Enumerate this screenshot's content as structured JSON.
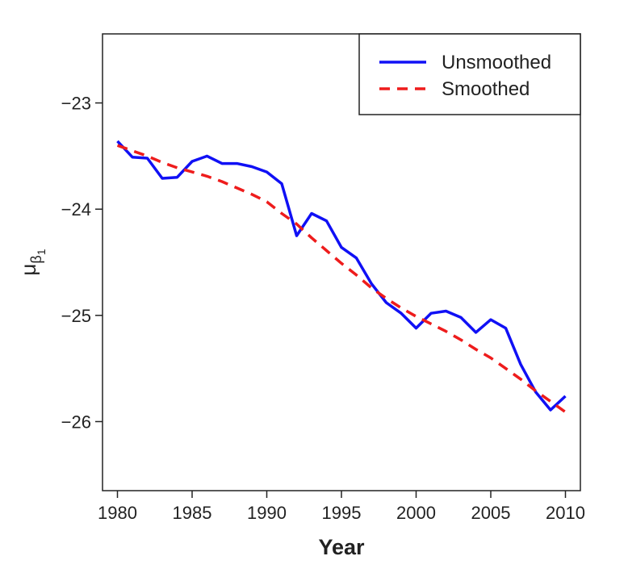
{
  "chart_data": {
    "type": "line",
    "title": "",
    "xlabel": "Year",
    "ylabel": {
      "base": "μ",
      "sub": "β",
      "subsub": "1"
    },
    "xlim": [
      1979,
      2011
    ],
    "ylim": [
      -26.65,
      -22.35
    ],
    "xticks": [
      1980,
      1985,
      1990,
      1995,
      2000,
      2005,
      2010
    ],
    "yticks": [
      -23,
      -24,
      -25,
      -26
    ],
    "xtick_labels": [
      "1980",
      "1985",
      "1990",
      "1995",
      "2000",
      "2005",
      "2010"
    ],
    "ytick_labels": [
      "−23",
      "−24",
      "−25",
      "−26"
    ],
    "legend_position": "top-right",
    "grid": false,
    "series": [
      {
        "name": "Unsmoothed",
        "color": "#1010f5",
        "style": "solid",
        "x": [
          1980,
          1981,
          1982,
          1983,
          1984,
          1985,
          1986,
          1987,
          1988,
          1989,
          1990,
          1991,
          1992,
          1993,
          1994,
          1995,
          1996,
          1997,
          1998,
          1999,
          2000,
          2001,
          2002,
          2003,
          2004,
          2005,
          2006,
          2007,
          2008,
          2009,
          2010
        ],
        "values": [
          -23.36,
          -23.51,
          -23.52,
          -23.71,
          -23.7,
          -23.55,
          -23.5,
          -23.57,
          -23.57,
          -23.6,
          -23.65,
          -23.76,
          -24.25,
          -24.04,
          -24.11,
          -24.36,
          -24.46,
          -24.7,
          -24.88,
          -24.98,
          -25.12,
          -24.98,
          -24.96,
          -25.02,
          -25.16,
          -25.04,
          -25.12,
          -25.46,
          -25.72,
          -25.89,
          -25.76
        ]
      },
      {
        "name": "Smoothed",
        "color": "#ee1c1c",
        "style": "dashed",
        "x": [
          1980,
          1981,
          1982,
          1983,
          1984,
          1985,
          1986,
          1987,
          1988,
          1989,
          1990,
          1991,
          1992,
          1993,
          1994,
          1995,
          1996,
          1997,
          1998,
          1999,
          2000,
          2001,
          2002,
          2003,
          2004,
          2005,
          2006,
          2007,
          2008,
          2009,
          2010
        ],
        "values": [
          -23.4,
          -23.45,
          -23.5,
          -23.56,
          -23.61,
          -23.65,
          -23.69,
          -23.74,
          -23.8,
          -23.86,
          -23.93,
          -24.04,
          -24.14,
          -24.27,
          -24.39,
          -24.51,
          -24.62,
          -24.74,
          -24.84,
          -24.93,
          -25.01,
          -25.08,
          -25.15,
          -25.23,
          -25.32,
          -25.4,
          -25.5,
          -25.6,
          -25.71,
          -25.81,
          -25.91
        ]
      }
    ]
  }
}
